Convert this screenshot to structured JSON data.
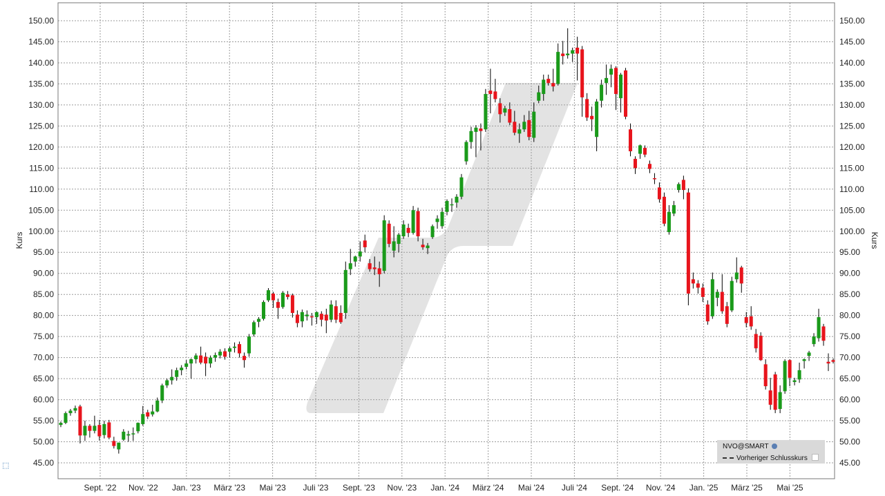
{
  "chart_data": {
    "type": "candlestick",
    "symbol": "NVO@SMART",
    "ylabel_left": "Kurs",
    "ylabel_right": "Kurs",
    "ylim": [
      42.5,
      152.5
    ],
    "yticks": [
      "45.00",
      "50.00",
      "55.00",
      "60.00",
      "65.00",
      "70.00",
      "75.00",
      "80.00",
      "85.00",
      "90.00",
      "95.00",
      "100.00",
      "105.00",
      "110.00",
      "115.00",
      "120.00",
      "125.00",
      "130.00",
      "135.00",
      "140.00",
      "145.00",
      "150.00"
    ],
    "ytick_values": [
      45,
      50,
      55,
      60,
      65,
      70,
      75,
      80,
      85,
      90,
      95,
      100,
      105,
      110,
      115,
      120,
      125,
      130,
      135,
      140,
      145,
      150
    ],
    "xticks": [
      "Sept. '22",
      "Nov. '22",
      "Jan. '23",
      "März '23",
      "Mai '23",
      "Juli '23",
      "Sept. '23",
      "Nov. '23",
      "Jan. '24",
      "März '24",
      "Mai '24",
      "Juli '24",
      "Sept. '24",
      "Nov. '24",
      "Jan. '25",
      "März '25",
      "Mai '25"
    ],
    "grid": true,
    "legend_position": "bottom-right",
    "legend": {
      "series_label": "NVO@SMART",
      "previous_close_label": "Vorheriger Schlusskurs"
    },
    "colors": {
      "up": "#1a9a1a",
      "down": "#e8141c",
      "wick": "#000000",
      "grid": "#9a9a9a",
      "watermark": "#e3e3e3"
    },
    "candles": [
      [
        54.0,
        54.8,
        53.5,
        54.5
      ],
      [
        54.5,
        57.2,
        54.2,
        56.8
      ],
      [
        56.8,
        57.8,
        56.2,
        57.4
      ],
      [
        57.4,
        58.6,
        56.8,
        58.0
      ],
      [
        58.4,
        58.8,
        49.6,
        51.5
      ],
      [
        51.5,
        55.0,
        50.2,
        53.8
      ],
      [
        53.8,
        54.2,
        51.0,
        52.6
      ],
      [
        52.6,
        56.2,
        52.0,
        53.8
      ],
      [
        54.0,
        55.2,
        50.3,
        51.3
      ],
      [
        51.6,
        55.0,
        50.8,
        54.2
      ],
      [
        54.6,
        55.2,
        50.6,
        51.0
      ],
      [
        50.2,
        51.2,
        48.4,
        49.0
      ],
      [
        48.2,
        49.8,
        47.2,
        49.8
      ],
      [
        50.5,
        53.0,
        50.2,
        52.4
      ],
      [
        51.5,
        52.6,
        50.0,
        51.8
      ],
      [
        51.8,
        53.4,
        50.2,
        52.0
      ],
      [
        52.5,
        54.6,
        52.0,
        54.5
      ],
      [
        54.2,
        58.5,
        53.8,
        56.6
      ],
      [
        57.0,
        57.6,
        55.4,
        56.0
      ],
      [
        56.5,
        58.8,
        56.0,
        57.2
      ],
      [
        57.2,
        60.5,
        57.0,
        59.8
      ],
      [
        59.8,
        63.8,
        59.2,
        63.4
      ],
      [
        63.4,
        65.0,
        62.8,
        64.6
      ],
      [
        64.6,
        67.2,
        63.6,
        65.4
      ],
      [
        65.4,
        67.6,
        64.5,
        67.0
      ],
      [
        67.0,
        68.2,
        65.8,
        67.6
      ],
      [
        67.8,
        69.4,
        67.2,
        68.6
      ],
      [
        68.6,
        69.8,
        65.0,
        69.6
      ],
      [
        69.6,
        71.0,
        68.6,
        70.5
      ],
      [
        70.5,
        72.6,
        68.4,
        68.8
      ],
      [
        70.2,
        71.2,
        65.6,
        68.6
      ],
      [
        68.6,
        70.5,
        67.6,
        70.0
      ],
      [
        70.0,
        71.2,
        69.0,
        70.6
      ],
      [
        70.5,
        72.0,
        69.8,
        71.4
      ],
      [
        71.5,
        72.2,
        69.5,
        70.2
      ],
      [
        71.4,
        72.6,
        70.0,
        72.2
      ],
      [
        72.3,
        73.6,
        71.2,
        72.6
      ],
      [
        73.2,
        73.8,
        70.0,
        71.0
      ],
      [
        70.4,
        71.2,
        67.6,
        69.4
      ],
      [
        71.0,
        75.6,
        70.2,
        75.0
      ],
      [
        75.5,
        78.8,
        75.0,
        78.4
      ],
      [
        78.5,
        79.6,
        77.2,
        79.2
      ],
      [
        79.2,
        83.6,
        78.8,
        83.2
      ],
      [
        83.6,
        86.5,
        83.2,
        86.0
      ],
      [
        85.2,
        85.6,
        81.8,
        83.6
      ],
      [
        83.2,
        84.0,
        79.2,
        81.8
      ],
      [
        82.0,
        85.8,
        81.6,
        85.4
      ],
      [
        85.0,
        85.8,
        83.8,
        84.4
      ],
      [
        84.8,
        85.2,
        79.5,
        80.6
      ],
      [
        80.2,
        81.2,
        77.2,
        78.2
      ],
      [
        78.6,
        81.4,
        77.2,
        80.8
      ],
      [
        79.8,
        81.2,
        78.8,
        80.2
      ],
      [
        79.8,
        80.6,
        77.6,
        79.6
      ],
      [
        79.6,
        81.0,
        78.0,
        80.8
      ],
      [
        80.4,
        81.0,
        77.4,
        79.0
      ],
      [
        80.2,
        81.6,
        75.8,
        78.8
      ],
      [
        79.0,
        83.6,
        78.4,
        82.6
      ],
      [
        82.2,
        83.6,
        78.2,
        79.0
      ],
      [
        80.6,
        82.4,
        78.0,
        78.4
      ],
      [
        80.6,
        92.8,
        79.2,
        90.8
      ],
      [
        91.0,
        95.8,
        89.6,
        92.4
      ],
      [
        92.8,
        94.2,
        91.6,
        94.0
      ],
      [
        94.0,
        97.6,
        92.8,
        95.2
      ],
      [
        97.8,
        99.2,
        95.0,
        96.2
      ],
      [
        92.4,
        93.4,
        90.4,
        91.0
      ],
      [
        91.4,
        94.0,
        89.6,
        91.0
      ],
      [
        91.2,
        92.8,
        86.8,
        89.8
      ],
      [
        90.6,
        103.8,
        90.0,
        102.6
      ],
      [
        101.8,
        102.6,
        96.2,
        97.0
      ],
      [
        95.4,
        101.2,
        93.8,
        97.6
      ],
      [
        97.0,
        99.6,
        95.0,
        99.2
      ],
      [
        98.8,
        102.6,
        98.2,
        101.6
      ],
      [
        100.8,
        101.8,
        98.6,
        99.6
      ],
      [
        99.6,
        106.0,
        99.2,
        105.0
      ],
      [
        104.8,
        105.6,
        97.6,
        98.8
      ],
      [
        96.8,
        98.2,
        95.6,
        96.2
      ],
      [
        96.0,
        97.2,
        94.6,
        96.6
      ],
      [
        98.6,
        101.6,
        98.2,
        101.2
      ],
      [
        102.2,
        103.8,
        100.6,
        103.0
      ],
      [
        101.2,
        105.6,
        100.6,
        104.6
      ],
      [
        104.6,
        107.6,
        103.8,
        107.2
      ],
      [
        106.2,
        107.8,
        104.6,
        106.4
      ],
      [
        106.8,
        108.8,
        105.6,
        108.2
      ],
      [
        108.2,
        113.6,
        107.6,
        112.8
      ],
      [
        116.6,
        121.6,
        115.8,
        121.2
      ],
      [
        121.2,
        124.8,
        119.6,
        123.8
      ],
      [
        123.6,
        125.2,
        117.6,
        124.6
      ],
      [
        124.4,
        125.6,
        119.2,
        123.8
      ],
      [
        124.2,
        133.8,
        123.6,
        132.6
      ],
      [
        133.4,
        138.6,
        128.0,
        132.6
      ],
      [
        133.2,
        136.2,
        130.6,
        131.4
      ],
      [
        130.4,
        131.6,
        125.8,
        127.8
      ],
      [
        128.2,
        129.8,
        127.4,
        129.2
      ],
      [
        129.0,
        130.6,
        125.2,
        125.8
      ],
      [
        126.0,
        128.6,
        122.8,
        123.4
      ],
      [
        123.2,
        125.6,
        121.0,
        124.2
      ],
      [
        124.2,
        127.6,
        123.6,
        126.0
      ],
      [
        126.4,
        128.6,
        121.6,
        122.4
      ],
      [
        122.2,
        130.6,
        121.2,
        128.4
      ],
      [
        131.0,
        134.6,
        130.4,
        133.0
      ],
      [
        132.6,
        137.2,
        131.0,
        136.0
      ],
      [
        136.2,
        137.2,
        134.6,
        135.2
      ],
      [
        135.2,
        138.6,
        133.2,
        134.4
      ],
      [
        135.0,
        144.6,
        134.6,
        142.6
      ],
      [
        142.2,
        145.2,
        139.6,
        141.6
      ],
      [
        141.8,
        148.2,
        141.0,
        142.2
      ],
      [
        142.2,
        143.6,
        140.2,
        143.0
      ],
      [
        143.6,
        146.2,
        135.8,
        142.2
      ],
      [
        143.2,
        144.0,
        127.2,
        131.8
      ],
      [
        131.4,
        132.8,
        126.2,
        127.0
      ],
      [
        127.4,
        129.6,
        123.8,
        126.6
      ],
      [
        122.4,
        131.4,
        119.0,
        130.8
      ],
      [
        131.0,
        136.0,
        129.4,
        134.8
      ],
      [
        135.2,
        139.6,
        132.4,
        136.4
      ],
      [
        137.2,
        139.6,
        134.2,
        138.6
      ],
      [
        138.8,
        139.2,
        128.8,
        132.6
      ],
      [
        131.6,
        137.6,
        128.2,
        137.2
      ],
      [
        138.2,
        138.8,
        126.6,
        127.2
      ],
      [
        124.2,
        125.6,
        117.8,
        119.0
      ],
      [
        117.2,
        117.8,
        113.6,
        115.0
      ],
      [
        118.4,
        120.6,
        117.2,
        120.4
      ],
      [
        119.8,
        120.4,
        117.6,
        118.2
      ],
      [
        116.0,
        116.8,
        113.8,
        114.8
      ],
      [
        112.6,
        113.8,
        111.2,
        112.4
      ],
      [
        110.4,
        111.6,
        106.8,
        107.6
      ],
      [
        108.2,
        109.2,
        101.2,
        101.8
      ],
      [
        99.8,
        106.2,
        99.2,
        104.6
      ],
      [
        104.2,
        107.2,
        103.6,
        106.2
      ],
      [
        109.8,
        111.6,
        109.2,
        111.2
      ],
      [
        112.2,
        113.2,
        107.6,
        109.8
      ],
      [
        109.2,
        110.2,
        82.4,
        85.2
      ],
      [
        88.6,
        90.2,
        86.4,
        87.6
      ],
      [
        87.6,
        88.4,
        85.2,
        86.6
      ],
      [
        86.6,
        87.6,
        83.2,
        84.4
      ],
      [
        82.6,
        83.6,
        77.8,
        78.6
      ],
      [
        79.8,
        90.2,
        79.2,
        88.6
      ],
      [
        84.2,
        86.2,
        82.2,
        85.6
      ],
      [
        85.6,
        89.8,
        80.4,
        81.0
      ],
      [
        82.2,
        83.2,
        77.2,
        78.0
      ],
      [
        81.2,
        89.2,
        80.8,
        88.2
      ],
      [
        88.6,
        93.8,
        87.8,
        90.2
      ],
      [
        91.4,
        91.8,
        85.4,
        87.6
      ],
      [
        79.6,
        80.8,
        77.2,
        78.2
      ],
      [
        79.8,
        82.2,
        76.6,
        77.4
      ],
      [
        75.6,
        76.8,
        71.2,
        72.2
      ],
      [
        75.2,
        76.0,
        69.2,
        69.4
      ],
      [
        68.4,
        69.6,
        62.4,
        63.2
      ],
      [
        62.2,
        65.2,
        57.6,
        58.8
      ],
      [
        66.0,
        66.6,
        56.8,
        57.6
      ],
      [
        57.8,
        63.4,
        56.8,
        61.8
      ],
      [
        62.0,
        69.6,
        61.4,
        69.2
      ],
      [
        69.4,
        69.6,
        63.2,
        65.2
      ],
      [
        64.2,
        65.2,
        63.4,
        64.6
      ],
      [
        64.8,
        68.8,
        64.0,
        67.0
      ],
      [
        69.2,
        69.8,
        67.4,
        69.6
      ],
      [
        70.4,
        71.6,
        69.2,
        71.2
      ],
      [
        73.2,
        75.8,
        72.6,
        75.0
      ],
      [
        74.6,
        81.6,
        73.8,
        79.6
      ],
      [
        77.4,
        78.0,
        72.8,
        74.0
      ],
      [
        69.0,
        71.0,
        66.8,
        68.6
      ],
      [
        69.4,
        69.8,
        68.6,
        69.0
      ]
    ]
  }
}
